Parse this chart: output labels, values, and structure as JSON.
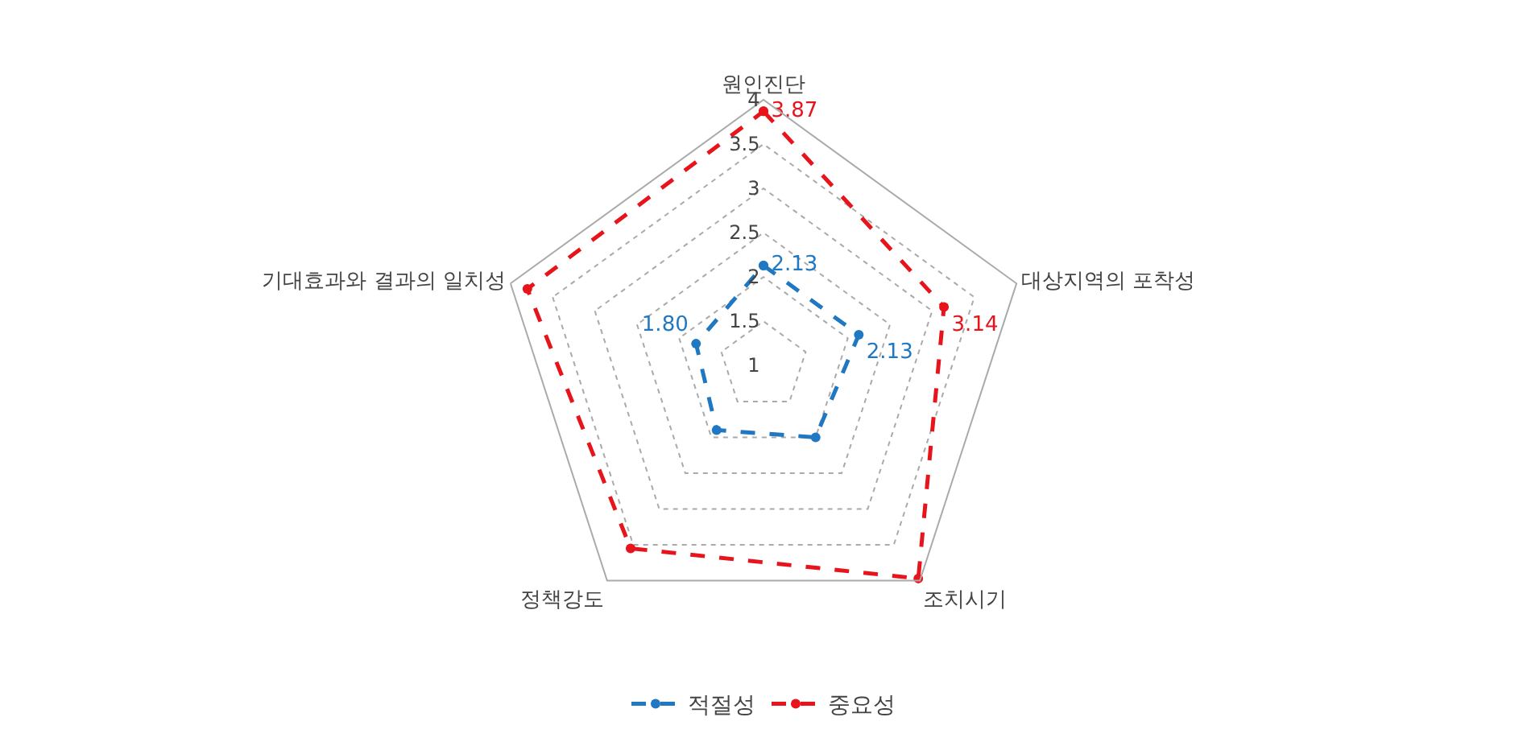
{
  "chart_data": {
    "type": "radar",
    "categories": [
      "원인진단",
      "대상지역의 포착성",
      "조치시기",
      "정책강도",
      "기대효과와 결과의 일치성"
    ],
    "series": [
      {
        "name": "적절성",
        "color": "#1f78c1",
        "values": [
          2.13,
          2.13,
          2.0,
          1.9,
          1.8
        ],
        "value_labels": [
          "2.13",
          "2.13",
          null,
          null,
          "1.80"
        ]
      },
      {
        "name": "중요성",
        "color": "#e8141c",
        "values": [
          3.87,
          3.14,
          3.97,
          3.55,
          3.8
        ],
        "value_labels": [
          "3.87",
          "3.14",
          null,
          null,
          null
        ]
      }
    ],
    "ylim": [
      1,
      4
    ],
    "yticks": [
      1,
      1.5,
      2,
      2.5,
      3,
      3.5,
      4
    ],
    "grid": true,
    "legend": "bottom",
    "marker": "circle",
    "line_style": "dashed"
  }
}
